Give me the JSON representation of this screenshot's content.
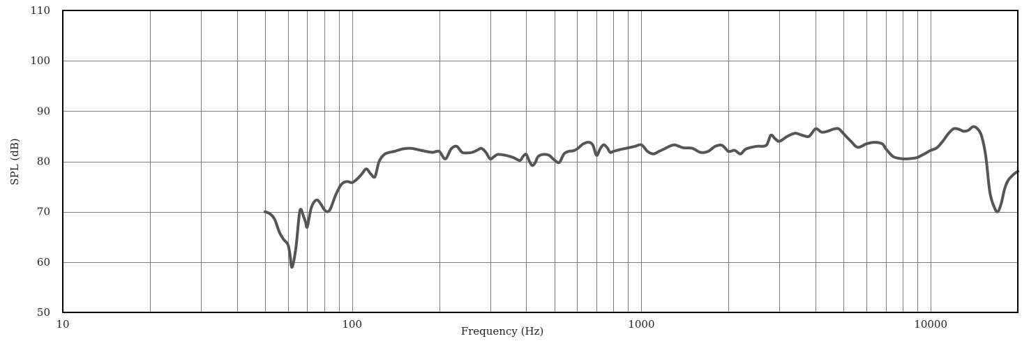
{
  "chart_data": {
    "type": "line",
    "xlabel": "Frequency (Hz)",
    "ylabel": "SPL (dB)",
    "x_scale": "log",
    "xlim": [
      10,
      20000
    ],
    "ylim": [
      50,
      110
    ],
    "grid": true,
    "x_ticks": [
      {
        "value": 10,
        "label": "10"
      },
      {
        "value": 100,
        "label": "100"
      },
      {
        "value": 1000,
        "label": "1000"
      },
      {
        "value": 10000,
        "label": "10000"
      }
    ],
    "y_ticks": [
      {
        "value": 50,
        "label": "50"
      },
      {
        "value": 60,
        "label": "60"
      },
      {
        "value": 70,
        "label": "70"
      },
      {
        "value": 80,
        "label": "80"
      },
      {
        "value": 90,
        "label": "90"
      },
      {
        "value": 100,
        "label": "100"
      },
      {
        "value": 110,
        "label": "110"
      }
    ],
    "x_gridlines": [
      20,
      30,
      40,
      50,
      60,
      70,
      80,
      90,
      100,
      200,
      300,
      400,
      500,
      600,
      700,
      800,
      900,
      1000,
      2000,
      3000,
      4000,
      5000,
      6000,
      7000,
      8000,
      9000,
      10000
    ],
    "y_gridlines": [
      60,
      70,
      80,
      90,
      100
    ],
    "series": [
      {
        "color": "#555555",
        "x": [
          50,
          52,
          54,
          56,
          58,
          60,
          61,
          62,
          64,
          66,
          68,
          69,
          70,
          72,
          74,
          76,
          78,
          80,
          82,
          84,
          86,
          88,
          92,
          96,
          100,
          104,
          108,
          112,
          116,
          120,
          124,
          130,
          140,
          150,
          160,
          170,
          180,
          190,
          200,
          210,
          220,
          230,
          240,
          250,
          260,
          270,
          280,
          290,
          300,
          310,
          320,
          340,
          360,
          380,
          390,
          400,
          410,
          420,
          430,
          440,
          460,
          480,
          500,
          520,
          540,
          560,
          580,
          600,
          630,
          660,
          680,
          700,
          720,
          740,
          760,
          780,
          800,
          850,
          900,
          950,
          1000,
          1050,
          1100,
          1150,
          1200,
          1250,
          1300,
          1350,
          1400,
          1500,
          1600,
          1700,
          1800,
          1900,
          2000,
          2100,
          2200,
          2300,
          2500,
          2700,
          2800,
          2900,
          3000,
          3200,
          3400,
          3600,
          3800,
          4000,
          4200,
          4400,
          4600,
          4800,
          5000,
          5300,
          5600,
          6000,
          6400,
          6800,
          7000,
          7400,
          7800,
          8200,
          8600,
          9000,
          9500,
          10000,
          10500,
          11000,
          11500,
          12000,
          12500,
          13000,
          13500,
          14000,
          14500,
          15000,
          15500,
          16000,
          16500,
          17000,
          17500,
          18000,
          18500,
          19000,
          19500,
          20000
        ],
        "y": [
          70,
          69.6,
          68.5,
          66,
          64.5,
          63.5,
          61.5,
          59,
          63,
          70.2,
          69,
          68,
          67,
          70.5,
          72,
          72.3,
          71.5,
          70.5,
          70,
          70.5,
          72,
          73.5,
          75.5,
          76,
          75.8,
          76.5,
          77.5,
          78.5,
          77.5,
          77,
          80,
          81.5,
          82,
          82.5,
          82.6,
          82.3,
          82,
          81.8,
          82,
          80.5,
          82.5,
          83,
          81.8,
          81.7,
          81.8,
          82.2,
          82.6,
          81.8,
          80.5,
          81,
          81.4,
          81.2,
          80.8,
          80.2,
          81,
          81.4,
          80,
          79.2,
          79.8,
          81,
          81.4,
          81.2,
          80.3,
          79.8,
          81.5,
          82,
          82.1,
          82.5,
          83.5,
          83.8,
          83.2,
          81.2,
          82.5,
          83.3,
          82.8,
          81.8,
          82,
          82.4,
          82.7,
          83,
          83.3,
          82,
          81.5,
          82,
          82.5,
          83,
          83.3,
          83,
          82.7,
          82.6,
          81.8,
          82,
          83,
          83.2,
          82,
          82.2,
          81.5,
          82.5,
          83,
          83.2,
          85.2,
          84.5,
          84,
          85,
          85.6,
          85.2,
          85,
          86.5,
          85.8,
          86,
          86.4,
          86.5,
          85.5,
          84,
          82.8,
          83.5,
          83.8,
          83.5,
          82.5,
          81,
          80.6,
          80.5,
          80.6,
          80.8,
          81.5,
          82.2,
          82.7,
          84,
          85.5,
          86.5,
          86.4,
          86,
          86.2,
          86.9,
          86.5,
          85,
          81,
          74,
          71.2,
          70,
          71.5,
          74.5,
          76.2,
          77,
          77.6,
          78
        ]
      }
    ]
  }
}
